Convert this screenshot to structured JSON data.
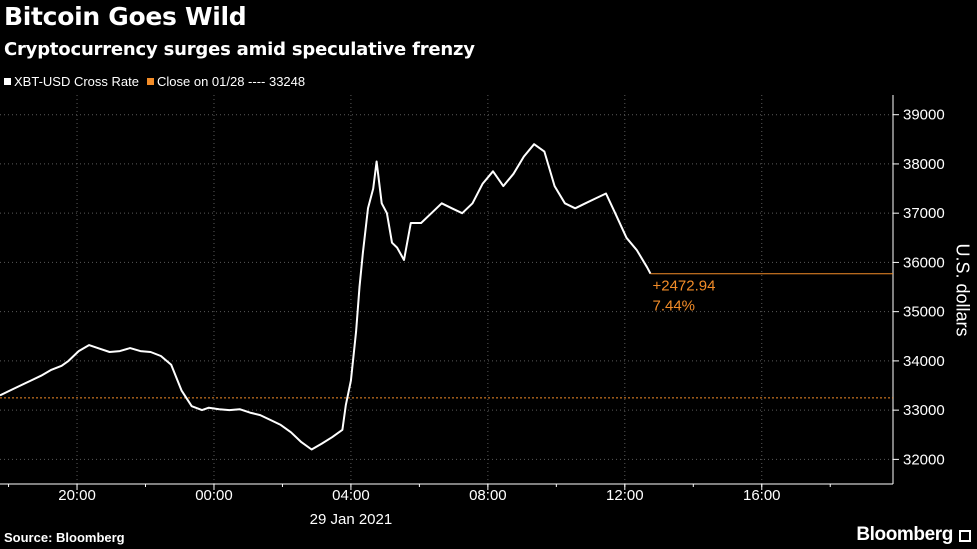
{
  "title": "Bitcoin Goes Wild",
  "subtitle": "Cryptocurrency surges amid speculative frenzy",
  "source": "Source: Bloomberg",
  "brand": "Bloomberg",
  "colors": {
    "background": "#000000",
    "price": "#ffffff",
    "close": "#f28c28",
    "grid": "#5a5a5a"
  },
  "chart_data": {
    "type": "line",
    "title": "Bitcoin Goes Wild",
    "subtitle": "Cryptocurrency surges amid speculative frenzy",
    "ylabel": "U.S. dollars",
    "xlabel": "29 Jan 2021",
    "ylim": [
      31500,
      39400
    ],
    "xlim": [
      "01/28 17:45",
      "01/29 19:50"
    ],
    "y_ticks": [
      "39000",
      "38000",
      "37000",
      "36000",
      "35000",
      "34000",
      "33000",
      "32000"
    ],
    "y_tick_values": [
      39000,
      38000,
      37000,
      36000,
      35000,
      34000,
      33000,
      32000
    ],
    "x_ticks": [
      "20:00",
      "00:00",
      "04:00",
      "08:00",
      "12:00",
      "16:00"
    ],
    "x_tick_hours": [
      2.25,
      6.25,
      10.25,
      14.25,
      18.25,
      22.25
    ],
    "grid": true,
    "axis_position": "right",
    "legend_position": "top-left",
    "series": [
      {
        "name": "XBT-USD Cross Rate",
        "color": "#ffffff",
        "x_hours_since_start": [
          0,
          0.3,
          0.6,
          0.9,
          1.2,
          1.5,
          1.8,
          2.0,
          2.3,
          2.6,
          2.9,
          3.2,
          3.5,
          3.8,
          4.1,
          4.4,
          4.7,
          5.0,
          5.3,
          5.6,
          5.9,
          6.1,
          6.4,
          6.7,
          7.0,
          7.3,
          7.6,
          7.9,
          8.2,
          8.5,
          8.8,
          9.1,
          9.4,
          9.7,
          10.0,
          10.1,
          10.25,
          10.4,
          10.5,
          10.6,
          10.75,
          10.9,
          11.0,
          11.15,
          11.3,
          11.45,
          11.6,
          11.8,
          12.0,
          12.3,
          12.6,
          12.9,
          13.2,
          13.5,
          13.8,
          14.1,
          14.4,
          14.7,
          15.0,
          15.3,
          15.6,
          15.9,
          16.2,
          16.5,
          16.8,
          17.1,
          17.4,
          17.7,
          18.0,
          18.3,
          18.6,
          18.9,
          19.0
        ],
        "y": [
          33300,
          33400,
          33500,
          33600,
          33700,
          33820,
          33900,
          34000,
          34200,
          34320,
          34250,
          34180,
          34200,
          34260,
          34200,
          34180,
          34100,
          33920,
          33400,
          33080,
          33000,
          33050,
          33020,
          33000,
          33020,
          32950,
          32900,
          32800,
          32700,
          32550,
          32350,
          32200,
          32320,
          32450,
          32600,
          33100,
          33600,
          34600,
          35500,
          36200,
          37100,
          37500,
          38050,
          37200,
          37000,
          36400,
          36300,
          36050,
          36800,
          36800,
          37000,
          37200,
          37100,
          37000,
          37200,
          37600,
          37850,
          37550,
          37800,
          38150,
          38400,
          38250,
          37550,
          37200,
          37100,
          37200,
          37300,
          37400,
          36950,
          36500,
          36250,
          35900,
          35770
        ]
      },
      {
        "name": "Close on 01/28 ---- 33248",
        "color": "#f28c28",
        "constant": 33248
      }
    ],
    "annotations": [
      {
        "text": "+2472.94",
        "value": 2472.94
      },
      {
        "text": "7.44%",
        "value": 7.44
      }
    ],
    "last_value": 35770
  },
  "legend": {
    "items": [
      {
        "label": "XBT-USD Cross Rate",
        "color": "#ffffff"
      },
      {
        "label": "Close on 01/28 ---- 33248",
        "color": "#f28c28"
      }
    ]
  }
}
